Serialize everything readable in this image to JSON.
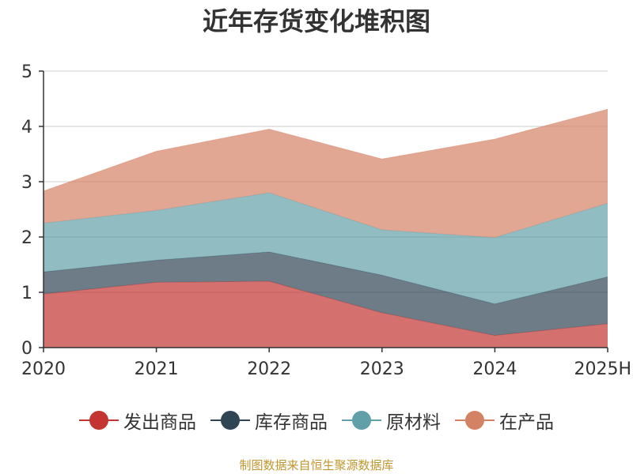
{
  "title": "近年存货变化堆积图",
  "footer": "制图数据来自恒生聚源数据库",
  "chart_data": {
    "type": "area",
    "stacked": true,
    "title": "近年存货变化堆积图",
    "xlabel": "",
    "ylabel": "",
    "categories": [
      "2020",
      "2021",
      "2022",
      "2023",
      "2024",
      "2025H"
    ],
    "ylim": [
      0,
      5
    ],
    "yticks": [
      0,
      1,
      2,
      3,
      4,
      5
    ],
    "grid": true,
    "legend_position": "bottom",
    "series": [
      {
        "name": "发出商品",
        "color": "#c23531",
        "values": [
          0.97,
          1.18,
          1.2,
          0.63,
          0.22,
          0.43
        ]
      },
      {
        "name": "库存商品",
        "color": "#2f4554",
        "values": [
          0.4,
          0.4,
          0.53,
          0.68,
          0.57,
          0.85
        ]
      },
      {
        "name": "原材料",
        "color": "#61a0a8",
        "values": [
          0.88,
          0.9,
          1.07,
          0.82,
          1.2,
          1.33
        ]
      },
      {
        "name": "在产品",
        "color": "#d48265",
        "values": [
          0.58,
          1.07,
          1.15,
          1.28,
          1.78,
          1.7
        ]
      }
    ]
  }
}
